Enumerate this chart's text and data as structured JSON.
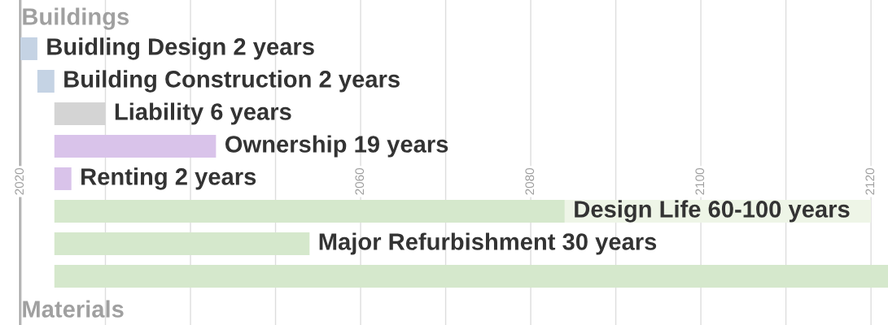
{
  "chart_data": {
    "type": "bar",
    "orientation": "horizontal",
    "categories": [
      "Buildings",
      null,
      null,
      null,
      null,
      null,
      null,
      null,
      null,
      "Materials"
    ],
    "series": [
      {
        "colors": [
          null,
          "#c5d3e4",
          "#c5d3e4",
          "#d4d4d4",
          "#d9c3ea",
          "#d9c3ea",
          "#d5e8cc",
          "#d5e8cc",
          "#d5e8cc",
          null
        ],
        "base": [
          null,
          2020,
          2022,
          2024,
          2024,
          2024,
          2024,
          2024,
          2024,
          null
        ],
        "values": [
          null,
          2,
          2,
          6,
          19,
          2,
          60,
          30,
          98,
          null
        ],
        "value_labels": [
          null,
          "Buidling Design 2 years",
          "Building Construction 2 years",
          "Liability 6 years",
          "Ownership 19 years",
          "Renting 2 years",
          "Design Life 60-100 years",
          "Major Refurbishment 30 years",
          null,
          null
        ]
      },
      {
        "color": "#eef5e7",
        "base": [
          null,
          null,
          null,
          null,
          null,
          null,
          2084,
          null,
          null,
          null
        ],
        "values": [
          null,
          null,
          null,
          null,
          null,
          null,
          36,
          null,
          null,
          null
        ]
      }
    ],
    "xlim": [
      2020,
      2122
    ],
    "xticks": [
      2020,
      {
        "value": 2030,
        "label": null
      },
      {
        "value": 2040,
        "label": null
      },
      {
        "value": 2050,
        "label": null
      },
      2060,
      {
        "value": 2070,
        "label": null
      },
      2080,
      {
        "value": 2090,
        "label": null
      },
      2100,
      {
        "value": 2110,
        "label": null
      },
      2120
    ],
    "grid": "x"
  }
}
